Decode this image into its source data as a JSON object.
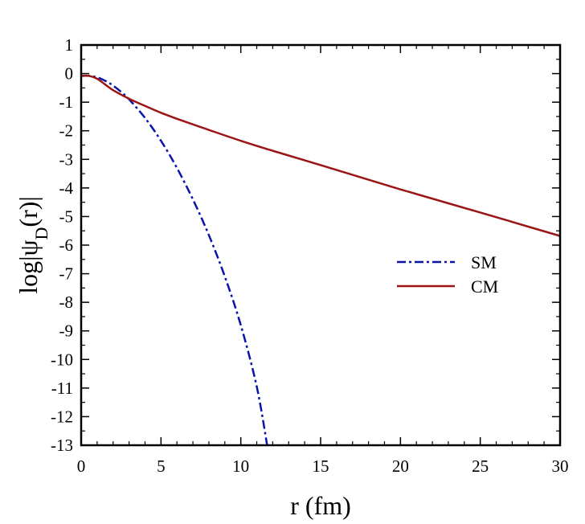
{
  "chart_data": {
    "type": "line",
    "xlabel": "r (fm)",
    "ylabel": {
      "prefix": "log|ψ",
      "subscript": "D",
      "suffix": "(r)|"
    },
    "xlim": [
      0,
      30
    ],
    "ylim": [
      -13,
      1
    ],
    "xticks": [
      0,
      5,
      10,
      15,
      20,
      25,
      30
    ],
    "yticks": [
      1,
      0,
      -1,
      -2,
      -3,
      -4,
      -5,
      -6,
      -7,
      -8,
      -9,
      -10,
      -11,
      -12,
      -13
    ],
    "legend_position": "right-middle",
    "series": [
      {
        "name": "SM",
        "color": "#0a14a8",
        "style": "dash-dot",
        "x": [
          0.0,
          0.5,
          1.0,
          1.5,
          2.0,
          2.5,
          3.0,
          4.0,
          5.0,
          6.0,
          7.0,
          8.0,
          9.0,
          10.0,
          11.0,
          11.65
        ],
        "y": [
          -0.08,
          -0.08,
          -0.13,
          -0.25,
          -0.42,
          -0.64,
          -0.9,
          -1.55,
          -2.35,
          -3.3,
          -4.4,
          -5.65,
          -7.1,
          -8.8,
          -10.95,
          -13.0
        ]
      },
      {
        "name": "CM",
        "color": "#9b1515",
        "style": "solid",
        "x": [
          0.0,
          0.5,
          1.0,
          1.5,
          2.0,
          3.0,
          4.0,
          5.0,
          6.0,
          8.0,
          10.0,
          12.0,
          15.0,
          20.0,
          25.0,
          30.0
        ],
        "y": [
          -0.08,
          -0.08,
          -0.18,
          -0.38,
          -0.58,
          -0.88,
          -1.13,
          -1.37,
          -1.58,
          -1.97,
          -2.35,
          -2.7,
          -3.2,
          -4.05,
          -4.86,
          -5.68
        ]
      }
    ]
  }
}
